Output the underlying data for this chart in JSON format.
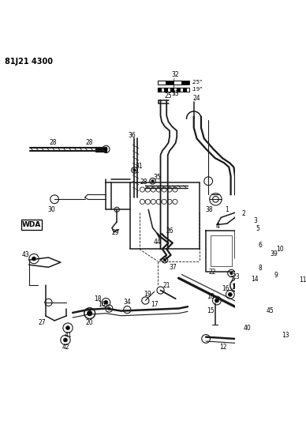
{
  "title": "81J21 4300",
  "wda_label": "WDA",
  "bg_color": "#ffffff",
  "line_color": "#1a1a1a",
  "fig_width": 3.88,
  "fig_height": 5.33,
  "dpi": 100,
  "scale_25": ".25\"",
  "scale_19": ".19\""
}
